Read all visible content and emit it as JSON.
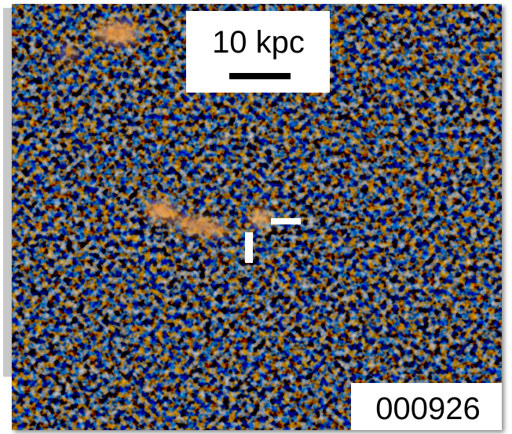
{
  "scale_bar": {
    "label": "10 kpc"
  },
  "object_id": "000926"
}
